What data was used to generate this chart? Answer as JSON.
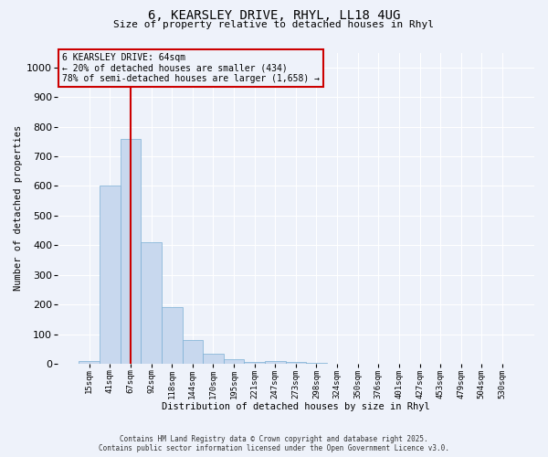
{
  "title_line1": "6, KEARSLEY DRIVE, RHYL, LL18 4UG",
  "title_line2": "Size of property relative to detached houses in Rhyl",
  "xlabel": "Distribution of detached houses by size in Rhyl",
  "ylabel": "Number of detached properties",
  "categories": [
    "15sqm",
    "41sqm",
    "67sqm",
    "92sqm",
    "118sqm",
    "144sqm",
    "170sqm",
    "195sqm",
    "221sqm",
    "247sqm",
    "273sqm",
    "298sqm",
    "324sqm",
    "350sqm",
    "376sqm",
    "401sqm",
    "427sqm",
    "453sqm",
    "479sqm",
    "504sqm",
    "530sqm"
  ],
  "values": [
    10,
    600,
    760,
    410,
    190,
    80,
    35,
    15,
    5,
    10,
    5,
    2,
    0,
    0,
    0,
    0,
    0,
    0,
    0,
    0,
    0
  ],
  "bar_color": "#c8d8ee",
  "bar_edge_color": "#7bafd4",
  "ylim": [
    0,
    1050
  ],
  "yticks": [
    0,
    100,
    200,
    300,
    400,
    500,
    600,
    700,
    800,
    900,
    1000
  ],
  "vline_x_index": 2,
  "vline_color": "#cc0000",
  "annotation_text": "6 KEARSLEY DRIVE: 64sqm\n← 20% of detached houses are smaller (434)\n78% of semi-detached houses are larger (1,658) →",
  "annotation_box_color": "#cc0000",
  "footer_line1": "Contains HM Land Registry data © Crown copyright and database right 2025.",
  "footer_line2": "Contains public sector information licensed under the Open Government Licence v3.0.",
  "bg_color": "#eef2fa",
  "grid_color": "#ffffff"
}
